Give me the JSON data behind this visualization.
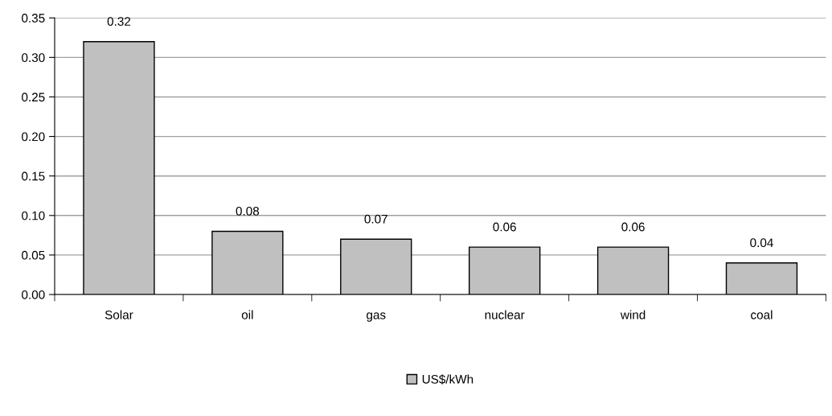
{
  "chart_data": {
    "type": "bar",
    "categories": [
      "Solar",
      "oil",
      "gas",
      "nuclear",
      "wind",
      "coal"
    ],
    "series": [
      {
        "name": "US$/kWh",
        "color": "#c0c0c0",
        "values": [
          0.32,
          0.08,
          0.07,
          0.06,
          0.06,
          0.04
        ]
      }
    ],
    "ylim": [
      0,
      0.35
    ],
    "yticks": [
      {
        "value": 0,
        "label": "0.00"
      },
      {
        "value": 0.05,
        "label": "0.05"
      },
      {
        "value": 0.1,
        "label": "0.10"
      },
      {
        "value": 0.15,
        "label": "0.15"
      },
      {
        "value": 0.2,
        "label": "0.20"
      },
      {
        "value": 0.25,
        "label": "0.25"
      },
      {
        "value": 0.3,
        "label": "0.30"
      },
      {
        "value": 0.35,
        "label": "0.35"
      }
    ],
    "grid": "y",
    "legend": "bottom",
    "data_labels": true
  }
}
